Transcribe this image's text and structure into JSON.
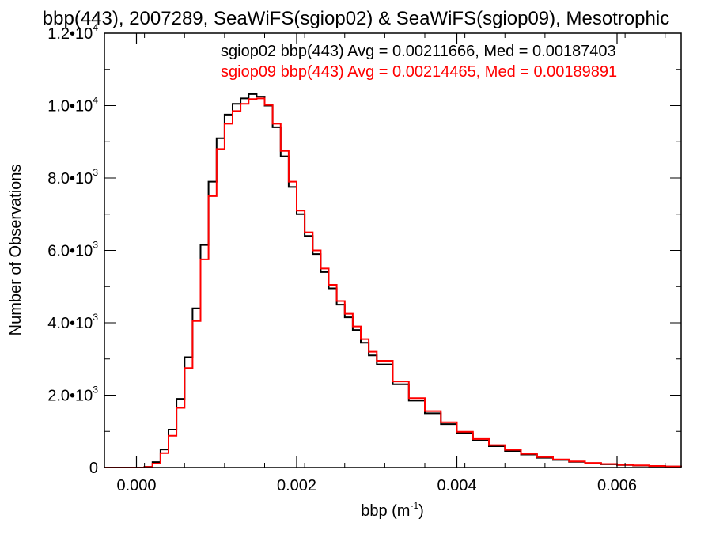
{
  "chart_data": {
    "type": "line",
    "title": "bbp(443), 2007289, SeaWiFS(sgiop02) & SeaWiFS(sgiop09), Mesotrophic",
    "xlabel": "bbp (m",
    "xlabel_sup": "-1",
    "xlabel_close": ")",
    "ylabel": "Number of Observations",
    "xlim": [
      -0.0004,
      0.0068
    ],
    "ylim": [
      0,
      12000
    ],
    "x_ticks": [
      {
        "value": 0.0,
        "label": "0.000"
      },
      {
        "value": 0.002,
        "label": "0.002"
      },
      {
        "value": 0.004,
        "label": "0.004"
      },
      {
        "value": 0.006,
        "label": "0.006"
      }
    ],
    "y_ticks": [
      {
        "value": 0,
        "mant": "0",
        "sup": ""
      },
      {
        "value": 2000,
        "mant": "2.0•10",
        "sup": "3"
      },
      {
        "value": 4000,
        "mant": "4.0•10",
        "sup": "3"
      },
      {
        "value": 6000,
        "mant": "6.0•10",
        "sup": "3"
      },
      {
        "value": 8000,
        "mant": "8.0•10",
        "sup": "3"
      },
      {
        "value": 10000,
        "mant": "1.0•10",
        "sup": "4"
      },
      {
        "value": 12000,
        "mant": "1.2•10",
        "sup": "4"
      }
    ],
    "legend": [
      {
        "text": "sgiop02 bbp(443) Avg = 0.00211666, Med = 0.00187403",
        "color": "#000000"
      },
      {
        "text": "sgiop09 bbp(443) Avg = 0.00214465, Med = 0.00189891",
        "color": "#ff0000"
      }
    ],
    "series": [
      {
        "color": "#000000",
        "x": [
          -0.0004,
          0.0,
          0.0001,
          0.0002,
          0.0003,
          0.0004,
          0.0005,
          0.0006,
          0.0007,
          0.0008,
          0.0009,
          0.001,
          0.0011,
          0.0012,
          0.0013,
          0.0014,
          0.0015,
          0.0016,
          0.0017,
          0.0018,
          0.0019,
          0.002,
          0.0021,
          0.0022,
          0.0023,
          0.0024,
          0.0025,
          0.0026,
          0.0027,
          0.0028,
          0.0029,
          0.003,
          0.0032,
          0.0034,
          0.0036,
          0.0038,
          0.004,
          0.0042,
          0.0044,
          0.0046,
          0.0048,
          0.005,
          0.0052,
          0.0054,
          0.0056,
          0.0058,
          0.006,
          0.0062,
          0.0064,
          0.0066,
          0.0068
        ],
        "y": [
          0,
          0,
          20,
          150,
          500,
          1050,
          1900,
          3050,
          4400,
          6150,
          7900,
          9100,
          9750,
          10050,
          10200,
          10320,
          10250,
          10000,
          9400,
          8600,
          7750,
          7000,
          6400,
          5900,
          5400,
          4950,
          4500,
          4150,
          3800,
          3450,
          3100,
          2850,
          2300,
          1850,
          1500,
          1200,
          950,
          750,
          590,
          460,
          360,
          270,
          210,
          160,
          120,
          90,
          70,
          55,
          40,
          28,
          20
        ]
      },
      {
        "color": "#ff0000",
        "x": [
          -0.0004,
          0.0,
          0.0001,
          0.0002,
          0.0003,
          0.0004,
          0.0005,
          0.0006,
          0.0007,
          0.0008,
          0.0009,
          0.001,
          0.0011,
          0.0012,
          0.0013,
          0.0014,
          0.0015,
          0.0016,
          0.0017,
          0.0018,
          0.0019,
          0.002,
          0.0021,
          0.0022,
          0.0023,
          0.0024,
          0.0025,
          0.0026,
          0.0027,
          0.0028,
          0.0029,
          0.003,
          0.0032,
          0.0034,
          0.0036,
          0.0038,
          0.004,
          0.0042,
          0.0044,
          0.0046,
          0.0048,
          0.005,
          0.0052,
          0.0054,
          0.0056,
          0.0058,
          0.006,
          0.0062,
          0.0064,
          0.0066,
          0.0068
        ],
        "y": [
          0,
          0,
          15,
          110,
          400,
          880,
          1650,
          2750,
          4050,
          5750,
          7500,
          8800,
          9500,
          9850,
          10050,
          10180,
          10200,
          10020,
          9500,
          8750,
          7900,
          7100,
          6500,
          6000,
          5500,
          5050,
          4600,
          4250,
          3900,
          3550,
          3200,
          2950,
          2380,
          1920,
          1560,
          1250,
          990,
          790,
          620,
          490,
          380,
          290,
          225,
          170,
          130,
          98,
          75,
          58,
          43,
          30,
          22
        ]
      }
    ]
  }
}
